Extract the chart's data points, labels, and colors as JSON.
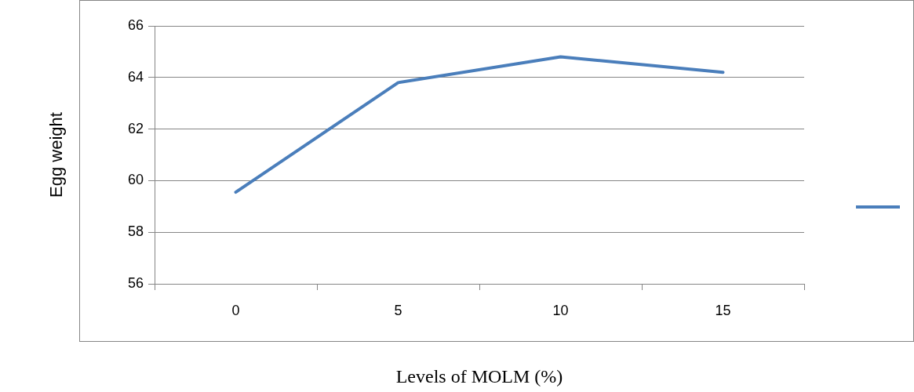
{
  "chart_data": {
    "type": "line",
    "xlabel": "Levels of MOLM (%)",
    "ylabel": "Egg weight",
    "categories": [
      "0",
      "5",
      "10",
      "15"
    ],
    "series": [
      {
        "color": "#4a7ebb",
        "values": [
          59.55,
          63.8,
          64.8,
          64.2
        ]
      }
    ],
    "ylim": [
      56,
      66
    ],
    "yticks": [
      56,
      58,
      60,
      62,
      64,
      66
    ],
    "grid": "y",
    "marker": "none",
    "line_style": "solid"
  }
}
